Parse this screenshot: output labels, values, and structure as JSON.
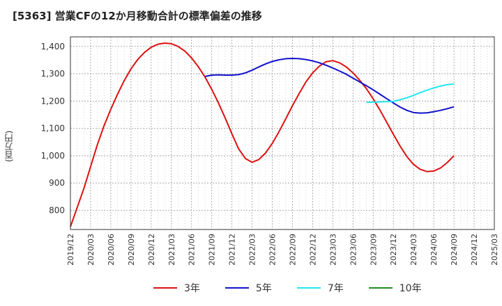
{
  "title": "[5363]  営業CFの12か月移動合計の標準偏差の推移",
  "ylabel": "(百万円)",
  "chart_data": {
    "type": "line",
    "title": "[5363]  営業CFの12か月移動合計の標準偏差の推移",
    "ylabel": "(百万円)",
    "xlabel": "",
    "ylim": [
      730,
      1435
    ],
    "yticks": [
      800,
      900,
      1000,
      1100,
      1200,
      1300,
      1400
    ],
    "ytick_labels": [
      "800",
      "900",
      "1,000",
      "1,100",
      "1,200",
      "1,300",
      "1,400"
    ],
    "x_ticks": [
      "2019/12",
      "2020/03",
      "2020/06",
      "2020/09",
      "2020/12",
      "2021/03",
      "2021/06",
      "2021/09",
      "2021/12",
      "2022/03",
      "2022/06",
      "2022/09",
      "2022/12",
      "2023/03",
      "2023/06",
      "2023/09",
      "2023/12",
      "2024/03",
      "2024/06",
      "2024/09",
      "2024/12",
      "2025/03"
    ],
    "grid": true,
    "legend_position": "bottom",
    "series": [
      {
        "name": "3年",
        "color": "#dd1111",
        "points": [
          [
            "2019/12",
            740
          ],
          [
            "2020/01",
            810
          ],
          [
            "2020/02",
            880
          ],
          [
            "2020/03",
            960
          ],
          [
            "2020/04",
            1040
          ],
          [
            "2020/05",
            1110
          ],
          [
            "2020/06",
            1170
          ],
          [
            "2020/07",
            1225
          ],
          [
            "2020/08",
            1275
          ],
          [
            "2020/09",
            1318
          ],
          [
            "2020/10",
            1352
          ],
          [
            "2020/11",
            1378
          ],
          [
            "2020/12",
            1397
          ],
          [
            "2021/01",
            1408
          ],
          [
            "2021/02",
            1412
          ],
          [
            "2021/03",
            1410
          ],
          [
            "2021/04",
            1400
          ],
          [
            "2021/05",
            1383
          ],
          [
            "2021/06",
            1358
          ],
          [
            "2021/07",
            1326
          ],
          [
            "2021/08",
            1288
          ],
          [
            "2021/09",
            1243
          ],
          [
            "2021/10",
            1193
          ],
          [
            "2021/11",
            1138
          ],
          [
            "2021/12",
            1080
          ],
          [
            "2022/01",
            1025
          ],
          [
            "2022/02",
            990
          ],
          [
            "2022/03",
            976
          ],
          [
            "2022/04",
            986
          ],
          [
            "2022/05",
            1010
          ],
          [
            "2022/06",
            1045
          ],
          [
            "2022/07",
            1088
          ],
          [
            "2022/08",
            1135
          ],
          [
            "2022/09",
            1183
          ],
          [
            "2022/10",
            1228
          ],
          [
            "2022/11",
            1270
          ],
          [
            "2022/12",
            1303
          ],
          [
            "2023/01",
            1328
          ],
          [
            "2023/02",
            1344
          ],
          [
            "2023/03",
            1348
          ],
          [
            "2023/04",
            1340
          ],
          [
            "2023/05",
            1325
          ],
          [
            "2023/06",
            1303
          ],
          [
            "2023/07",
            1276
          ],
          [
            "2023/08",
            1245
          ],
          [
            "2023/09",
            1208
          ],
          [
            "2023/10",
            1167
          ],
          [
            "2023/11",
            1123
          ],
          [
            "2023/12",
            1078
          ],
          [
            "2024/01",
            1035
          ],
          [
            "2024/02",
            997
          ],
          [
            "2024/03",
            968
          ],
          [
            "2024/04",
            950
          ],
          [
            "2024/05",
            942
          ],
          [
            "2024/06",
            944
          ],
          [
            "2024/07",
            955
          ],
          [
            "2024/08",
            975
          ],
          [
            "2024/09",
            1000
          ]
        ]
      },
      {
        "name": "5年",
        "color": "#1111cc",
        "points": [
          [
            "2021/08",
            1290
          ],
          [
            "2021/09",
            1295
          ],
          [
            "2021/10",
            1296
          ],
          [
            "2021/11",
            1295
          ],
          [
            "2021/12",
            1295
          ],
          [
            "2022/01",
            1297
          ],
          [
            "2022/02",
            1303
          ],
          [
            "2022/03",
            1313
          ],
          [
            "2022/04",
            1325
          ],
          [
            "2022/05",
            1336
          ],
          [
            "2022/06",
            1345
          ],
          [
            "2022/07",
            1351
          ],
          [
            "2022/08",
            1355
          ],
          [
            "2022/09",
            1356
          ],
          [
            "2022/10",
            1355
          ],
          [
            "2022/11",
            1352
          ],
          [
            "2022/12",
            1347
          ],
          [
            "2023/01",
            1340
          ],
          [
            "2023/02",
            1331
          ],
          [
            "2023/03",
            1321
          ],
          [
            "2023/04",
            1310
          ],
          [
            "2023/05",
            1298
          ],
          [
            "2023/06",
            1284
          ],
          [
            "2023/07",
            1270
          ],
          [
            "2023/08",
            1256
          ],
          [
            "2023/09",
            1241
          ],
          [
            "2023/10",
            1225
          ],
          [
            "2023/11",
            1209
          ],
          [
            "2023/12",
            1193
          ],
          [
            "2024/01",
            1178
          ],
          [
            "2024/02",
            1166
          ],
          [
            "2024/03",
            1158
          ],
          [
            "2024/04",
            1156
          ],
          [
            "2024/05",
            1157
          ],
          [
            "2024/06",
            1161
          ],
          [
            "2024/07",
            1166
          ],
          [
            "2024/08",
            1172
          ],
          [
            "2024/09",
            1179
          ]
        ]
      },
      {
        "name": "7年",
        "color": "#22e6ee",
        "points": [
          [
            "2023/08",
            1195
          ],
          [
            "2023/09",
            1196
          ],
          [
            "2023/10",
            1197
          ],
          [
            "2023/11",
            1198
          ],
          [
            "2023/12",
            1199
          ],
          [
            "2024/01",
            1205
          ],
          [
            "2024/02",
            1212
          ],
          [
            "2024/03",
            1221
          ],
          [
            "2024/04",
            1231
          ],
          [
            "2024/05",
            1240
          ],
          [
            "2024/06",
            1248
          ],
          [
            "2024/07",
            1255
          ],
          [
            "2024/08",
            1260
          ],
          [
            "2024/09",
            1263
          ]
        ]
      },
      {
        "name": "10年",
        "color": "#228822",
        "points": []
      }
    ]
  }
}
